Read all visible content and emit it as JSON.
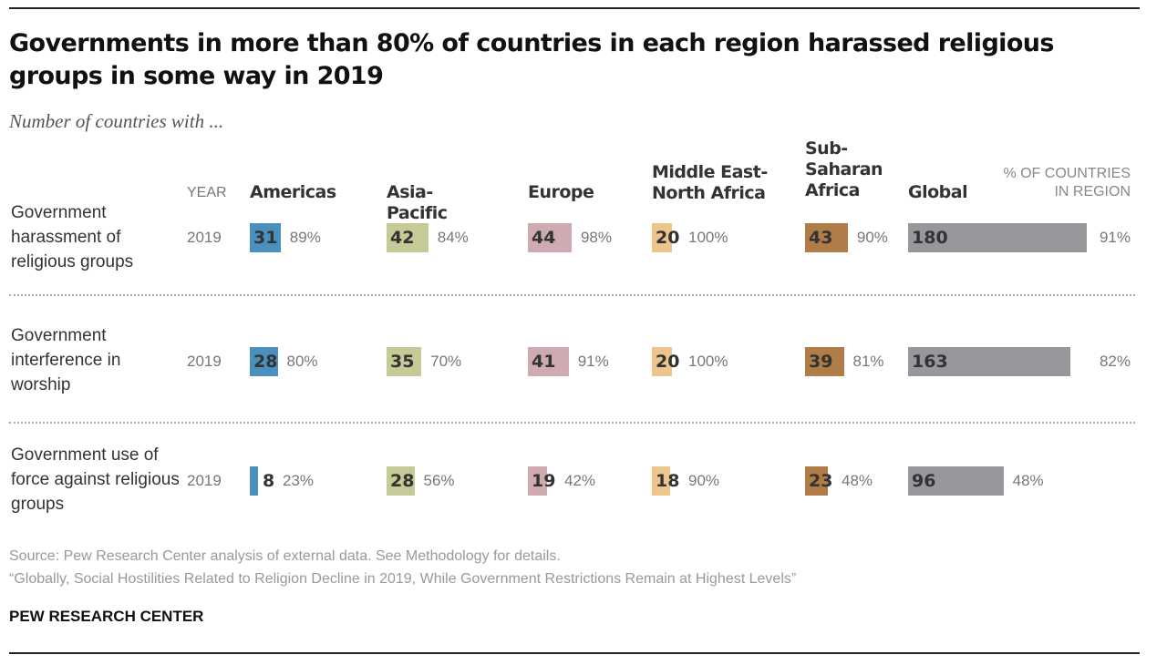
{
  "chart_data": {
    "type": "bar",
    "title": "Governments in more than 80% of countries in each region harassed religious groups in some way in 2019",
    "subtitle": "Number of countries with ...",
    "year_header": "YEAR",
    "pct_header": "% OF COUNTRIES IN REGION",
    "categories": [
      "Americas",
      "Asia-Pacific",
      "Europe",
      "Middle East-North Africa",
      "Sub-Saharan Africa",
      "Global"
    ],
    "colors": [
      "#4a90bf",
      "#c5ca96",
      "#cfaab0",
      "#ecc68c",
      "#b07d48",
      "#97989b"
    ],
    "rows": [
      {
        "label": "Government harassment of religious groups",
        "year": "2019",
        "values": [
          31,
          42,
          44,
          20,
          43,
          180
        ],
        "pcts": [
          "89%",
          "84%",
          "98%",
          "100%",
          "90%",
          "91%"
        ]
      },
      {
        "label": "Government interference in worship",
        "year": "2019",
        "values": [
          28,
          35,
          41,
          20,
          39,
          163
        ],
        "pcts": [
          "80%",
          "70%",
          "91%",
          "100%",
          "81%",
          "82%"
        ]
      },
      {
        "label": "Government use of force against religious groups",
        "year": "2019",
        "values": [
          8,
          28,
          19,
          18,
          23,
          96
        ],
        "pcts": [
          "23%",
          "56%",
          "42%",
          "90%",
          "48%",
          "48%"
        ]
      }
    ]
  },
  "footer": {
    "source": "Source: Pew Research Center analysis of external data. See Methodology for details.",
    "report": "“Globally, Social Hostilities Related to Religion Decline in 2019, While Government Restrictions Remain at Highest Levels”",
    "brand": "PEW RESEARCH CENTER"
  }
}
